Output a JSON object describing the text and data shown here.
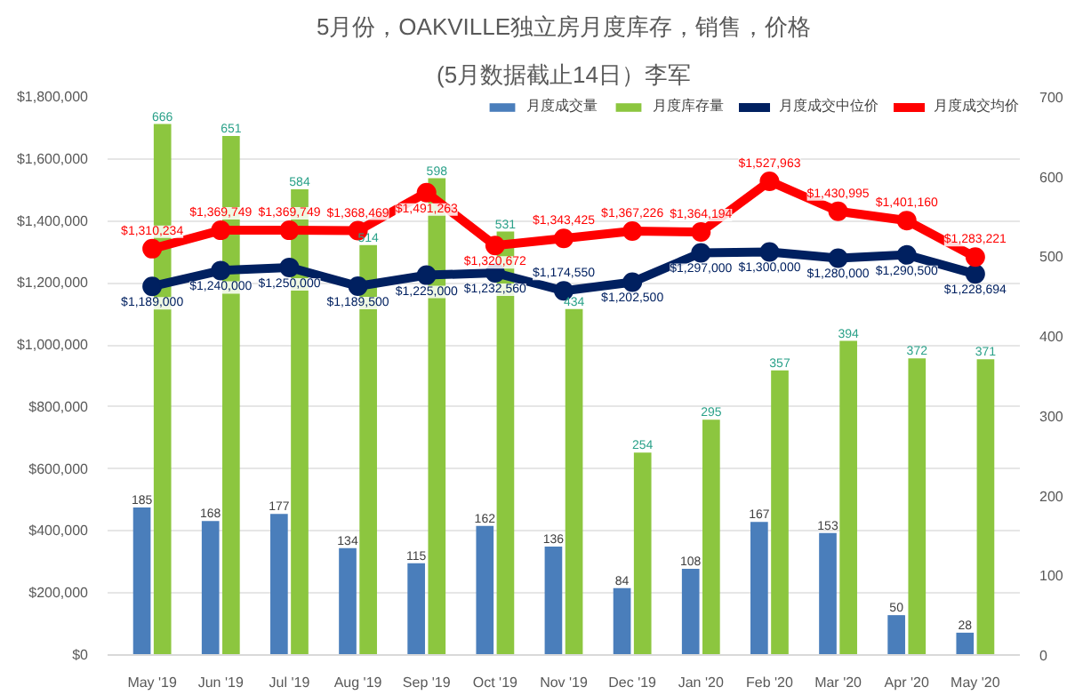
{
  "chart_data": {
    "type": "bar",
    "title": "5月份，OAKVILLE独立房月度库存，销售，价格",
    "subtitle": "(5月数据截止14日）李军",
    "categories": [
      "May '19",
      "Jun '19",
      "Jul '19",
      "Aug '19",
      "Sep '19",
      "Oct '19",
      "Nov '19",
      "Dec '19",
      "Jan '20",
      "Feb '20",
      "Mar '20",
      "Apr '20",
      "May '20"
    ],
    "series": [
      {
        "name": "月度成交量",
        "axis": "y2",
        "color": "#4a7ebb",
        "values": [
          185,
          168,
          177,
          134,
          115,
          162,
          136,
          84,
          108,
          167,
          153,
          50,
          28
        ],
        "value_labels": [
          "185",
          "168",
          "177",
          "134",
          "115",
          "162",
          "136",
          "84",
          "108",
          "167",
          "153",
          "50",
          "28"
        ]
      },
      {
        "name": "月度库存量",
        "axis": "y2",
        "color": "#8cc63f",
        "values": [
          666,
          651,
          584,
          514,
          598,
          531,
          434,
          254,
          295,
          357,
          394,
          372,
          371
        ],
        "value_labels": [
          "666",
          "651",
          "584",
          "514",
          "598",
          "531",
          "434",
          "254",
          "295",
          "357",
          "394",
          "372",
          "371"
        ]
      },
      {
        "name": "月度成交中位价",
        "type": "line",
        "color": "#002060",
        "values": [
          1189000,
          1240000,
          1250000,
          1189500,
          1225000,
          1232560,
          1174550,
          1202500,
          1297000,
          1300000,
          1280000,
          1290500,
          1228694
        ],
        "value_labels": [
          "$1,189,000",
          "$1,240,000",
          "$1,250,000",
          "$1,189,500",
          "$1,225,000",
          "$1,232,560",
          "$1,174,550",
          "$1,202,500",
          "$1,297,000",
          "$1,300,000",
          "$1,280,000",
          "$1,290,500",
          "$1,228,694"
        ]
      },
      {
        "name": "月度成交均价",
        "type": "line",
        "color": "#ff0000",
        "values": [
          1310234,
          1369749,
          1369749,
          1368469,
          1491263,
          1320672,
          1343425,
          1367226,
          1364194,
          1527963,
          1430995,
          1401160,
          1283221
        ],
        "value_labels": [
          "$1,310,234",
          "$1,369,749",
          "$1,369,749",
          "$1,368,469",
          "$1,491,263",
          "$1,320,672",
          "$1,343,425",
          "$1,367,226",
          "$1,364,194",
          "$1,527,963",
          "$1,430,995",
          "$1,401,160",
          "$1,283,221"
        ]
      }
    ],
    "ylim": [
      0,
      1800000
    ],
    "yticks": [
      {
        "value": 0,
        "label": "$0"
      },
      {
        "value": 200000,
        "label": "$200,000"
      },
      {
        "value": 400000,
        "label": "$400,000"
      },
      {
        "value": 600000,
        "label": "$600,000"
      },
      {
        "value": 800000,
        "label": "$800,000"
      },
      {
        "value": 1000000,
        "label": "$1,000,000"
      },
      {
        "value": 1200000,
        "label": "$1,200,000"
      },
      {
        "value": 1400000,
        "label": "$1,400,000"
      },
      {
        "value": 1600000,
        "label": "$1,600,000"
      },
      {
        "value": 1800000,
        "label": "$1,800,000"
      }
    ],
    "y2lim": [
      0,
      700
    ],
    "y2ticks": [
      0,
      100,
      200,
      300,
      400,
      500,
      600,
      700
    ],
    "grid": "y",
    "legend": "top right",
    "marker": "circle",
    "line_style": "solid"
  }
}
